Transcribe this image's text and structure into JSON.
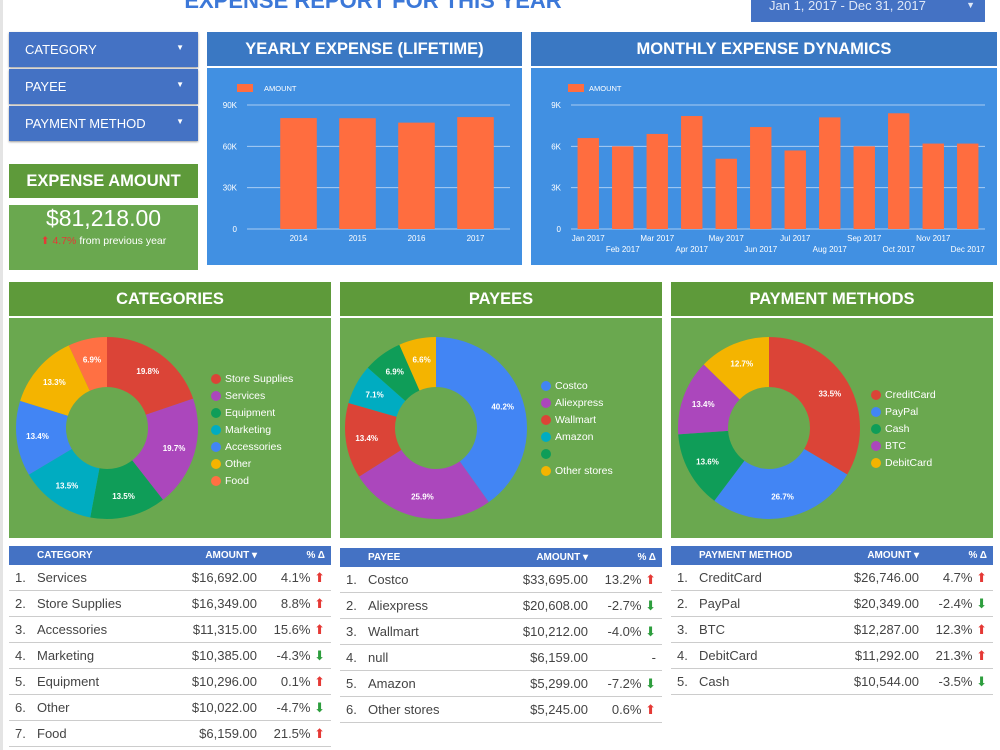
{
  "header": {
    "title": "EXPENSE REPORT FOR THIS YEAR",
    "date_range": "Jan 1, 2017 - Dec 31, 2017"
  },
  "filters": [
    {
      "label": "CATEGORY"
    },
    {
      "label": "PAYEE"
    },
    {
      "label": "PAYMENT METHOD"
    }
  ],
  "kpi": {
    "title": "EXPENSE AMOUNT",
    "value": "$81,218.00",
    "change": "4.7%",
    "change_suffix": "from previous year",
    "direction": "up"
  },
  "colors": {
    "bar": "#ff6d3f",
    "up": "#e53935",
    "down": "#2e9e3e",
    "header_blue": "#3a78c3",
    "body_blue": "#4190e2",
    "header_green": "#5e9a3a",
    "body_green": "#6aa84f"
  },
  "chart_data": [
    {
      "type": "bar",
      "title": "YEARLY EXPENSE (LIFETIME)",
      "legend": "AMOUNT",
      "legend_position": "top-left",
      "grid": true,
      "categories": [
        "2014",
        "2015",
        "2016",
        "2017"
      ],
      "values": [
        80500,
        80400,
        77200,
        81218
      ],
      "ylim": [
        0,
        90000
      ],
      "yticks": [
        "0",
        "30K",
        "60K",
        "90K"
      ],
      "ytick_values": [
        0,
        30000,
        60000,
        90000
      ]
    },
    {
      "type": "bar",
      "title": "MONTHLY EXPENSE DYNAMICS",
      "legend": "AMOUNT",
      "legend_position": "top-left",
      "grid": true,
      "categories": [
        "Jan 2017",
        "Feb 2017",
        "Mar 2017",
        "Apr 2017",
        "May 2017",
        "Jun 2017",
        "Jul 2017",
        "Aug 2017",
        "Sep 2017",
        "Oct 2017",
        "Nov 2017",
        "Dec 2017"
      ],
      "values": [
        6600,
        6000,
        6900,
        8200,
        5100,
        7400,
        5700,
        8100,
        6000,
        8400,
        6200,
        6200
      ],
      "ylim": [
        0,
        9000
      ],
      "yticks": [
        "0",
        "3K",
        "6K",
        "9K"
      ],
      "ytick_values": [
        0,
        3000,
        6000,
        9000
      ]
    },
    {
      "type": "pie",
      "title": "CATEGORIES",
      "legend_position": "right",
      "slices": [
        {
          "name": "Store Supplies",
          "value": 19.8,
          "label": "19.8%",
          "color": "#db4437"
        },
        {
          "name": "Services",
          "value": 19.7,
          "label": "19.7%",
          "color": "#ab47bc"
        },
        {
          "name": "Equipment",
          "value": 13.5,
          "label": "13.5%",
          "color": "#0f9d58"
        },
        {
          "name": "Marketing",
          "value": 13.5,
          "label": "13.5%",
          "color": "#00acc1"
        },
        {
          "name": "Accessories",
          "value": 13.4,
          "label": "13.4%",
          "color": "#4285f4"
        },
        {
          "name": "Other",
          "value": 13.3,
          "label": "13.3%",
          "color": "#f4b400"
        },
        {
          "name": "Food",
          "value": 6.9,
          "label": "6.9%",
          "color": "#ff7043"
        }
      ]
    },
    {
      "type": "pie",
      "title": "PAYEES",
      "legend_position": "right",
      "slices": [
        {
          "name": "Costco",
          "value": 40.2,
          "label": "40.2%",
          "color": "#4285f4"
        },
        {
          "name": "Aliexpress",
          "value": 25.9,
          "label": "25.9%",
          "color": "#ab47bc"
        },
        {
          "name": "Wallmart",
          "value": 13.4,
          "label": "13.4%",
          "color": "#db4437"
        },
        {
          "name": "Amazon",
          "value": 7.1,
          "label": "7.1%",
          "color": "#00acc1"
        },
        {
          "name": "",
          "value": 6.9,
          "label": "6.9%",
          "color": "#0f9d58"
        },
        {
          "name": "Other stores",
          "value": 6.6,
          "label": "6.6%",
          "color": "#f4b400"
        }
      ]
    },
    {
      "type": "pie",
      "title": "PAYMENT METHODS",
      "legend_position": "right",
      "slices": [
        {
          "name": "CreditCard",
          "value": 33.5,
          "label": "33.5%",
          "color": "#db4437"
        },
        {
          "name": "PayPal",
          "value": 26.7,
          "label": "26.7%",
          "color": "#4285f4"
        },
        {
          "name": "Cash",
          "value": 13.6,
          "label": "13.6%",
          "color": "#0f9d58"
        },
        {
          "name": "BTC",
          "value": 13.4,
          "label": "13.4%",
          "color": "#ab47bc"
        },
        {
          "name": "DebitCard",
          "value": 12.7,
          "label": "12.7%",
          "color": "#f4b400"
        }
      ]
    }
  ],
  "tables": [
    {
      "headers": [
        "CATEGORY",
        "AMOUNT ▾",
        "% Δ"
      ],
      "rows": [
        [
          "1.",
          "Services",
          "$16,692.00",
          "4.1%",
          "up"
        ],
        [
          "2.",
          "Store Supplies",
          "$16,349.00",
          "8.8%",
          "up"
        ],
        [
          "3.",
          "Accessories",
          "$11,315.00",
          "15.6%",
          "up"
        ],
        [
          "4.",
          "Marketing",
          "$10,385.00",
          "-4.3%",
          "down"
        ],
        [
          "5.",
          "Equipment",
          "$10,296.00",
          "0.1%",
          "up"
        ],
        [
          "6.",
          "Other",
          "$10,022.00",
          "-4.7%",
          "down"
        ],
        [
          "7.",
          "Food",
          "$6,159.00",
          "21.5%",
          "up"
        ]
      ]
    },
    {
      "headers": [
        "PAYEE",
        "AMOUNT ▾",
        "% Δ"
      ],
      "rows": [
        [
          "1.",
          "Costco",
          "$33,695.00",
          "13.2%",
          "up"
        ],
        [
          "2.",
          "Aliexpress",
          "$20,608.00",
          "-2.7%",
          "down"
        ],
        [
          "3.",
          "Wallmart",
          "$10,212.00",
          "-4.0%",
          "down"
        ],
        [
          "4.",
          "null",
          "$6,159.00",
          "-",
          ""
        ],
        [
          "5.",
          "Amazon",
          "$5,299.00",
          "-7.2%",
          "down"
        ],
        [
          "6.",
          "Other stores",
          "$5,245.00",
          "0.6%",
          "up"
        ]
      ]
    },
    {
      "headers": [
        "PAYMENT METHOD",
        "AMOUNT ▾",
        "% Δ"
      ],
      "rows": [
        [
          "1.",
          "CreditCard",
          "$26,746.00",
          "4.7%",
          "up"
        ],
        [
          "2.",
          "PayPal",
          "$20,349.00",
          "-2.4%",
          "down"
        ],
        [
          "3.",
          "BTC",
          "$12,287.00",
          "12.3%",
          "up"
        ],
        [
          "4.",
          "DebitCard",
          "$11,292.00",
          "21.3%",
          "up"
        ],
        [
          "5.",
          "Cash",
          "$10,544.00",
          "-3.5%",
          "down"
        ]
      ]
    }
  ]
}
